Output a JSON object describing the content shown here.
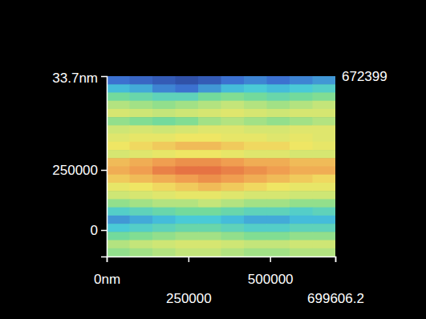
{
  "chart_data": {
    "type": "heatmap",
    "xlim": [
      0,
      699606.2
    ],
    "xticks": [
      {
        "value": 0,
        "label": "0nm"
      },
      250000,
      500000,
      699606.2
    ],
    "ylim": [
      -110000,
      640000
    ],
    "yticks": [
      0,
      250000
    ],
    "zlim": [
      0,
      33.7
    ],
    "annotations": [
      {
        "text": "33.7nm"
      },
      {
        "text": "672399"
      }
    ],
    "cells": [
      [
        5,
        4,
        3,
        2,
        3,
        5,
        6,
        5,
        6,
        7
      ],
      [
        9,
        8,
        6,
        5,
        7,
        9,
        10,
        9,
        10,
        11
      ],
      [
        14,
        13,
        12,
        12,
        14,
        15,
        14,
        13,
        14,
        15
      ],
      [
        18,
        17,
        16,
        17,
        18,
        19,
        18,
        17,
        18,
        19
      ],
      [
        21,
        20,
        19,
        20,
        21,
        22,
        21,
        20,
        21,
        21
      ],
      [
        16,
        15,
        14,
        15,
        17,
        18,
        17,
        16,
        17,
        18
      ],
      [
        20,
        21,
        20,
        21,
        22,
        22,
        21,
        21,
        22,
        22
      ],
      [
        22,
        23,
        23,
        24,
        24,
        23,
        23,
        22,
        23,
        22
      ],
      [
        24,
        25,
        26,
        27,
        27,
        26,
        25,
        25,
        24,
        23
      ],
      [
        21,
        22,
        23,
        24,
        24,
        23,
        22,
        22,
        21,
        21
      ],
      [
        27,
        28,
        29,
        30,
        30,
        29,
        28,
        28,
        27,
        27
      ],
      [
        28,
        29,
        31,
        32,
        32,
        31,
        30,
        29,
        28,
        28
      ],
      [
        26,
        27,
        28,
        29,
        30,
        29,
        28,
        27,
        26,
        25
      ],
      [
        23,
        24,
        25,
        26,
        27,
        26,
        25,
        24,
        23,
        23
      ],
      [
        20,
        21,
        22,
        23,
        23,
        22,
        21,
        21,
        20,
        20
      ],
      [
        16,
        17,
        18,
        18,
        19,
        18,
        17,
        17,
        16,
        16
      ],
      [
        11,
        12,
        13,
        14,
        14,
        13,
        12,
        12,
        11,
        12
      ],
      [
        7,
        8,
        9,
        10,
        10,
        9,
        8,
        8,
        9,
        9
      ],
      [
        10,
        11,
        12,
        13,
        13,
        12,
        11,
        11,
        12,
        12
      ],
      [
        14,
        15,
        16,
        17,
        17,
        16,
        15,
        15,
        16,
        16
      ],
      [
        18,
        19,
        20,
        21,
        21,
        20,
        19,
        19,
        20,
        20
      ],
      [
        16,
        17,
        18,
        19,
        19,
        18,
        17,
        17,
        18,
        18
      ]
    ]
  }
}
